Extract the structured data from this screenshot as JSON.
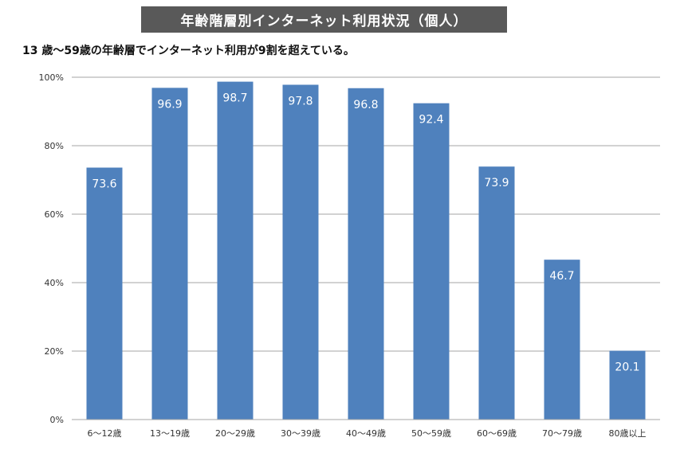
{
  "header": {
    "title": "年齢階層別インターネット利用状況（個人）",
    "subtitle": "13 歳～59歳の年齢層でインターネット利用が9割を超えている。"
  },
  "chart_data": {
    "type": "bar",
    "categories": [
      "6～12歳",
      "13～19歳",
      "20～29歳",
      "30～39歳",
      "40～49歳",
      "50～59歳",
      "60～69歳",
      "70～79歳",
      "80歳以上"
    ],
    "values": [
      73.6,
      96.9,
      98.7,
      97.8,
      96.8,
      92.4,
      73.9,
      46.7,
      20.1
    ],
    "data_labels": [
      "73.6",
      "96.9",
      "98.7",
      "97.8",
      "96.8",
      "92.4",
      "73.9",
      "46.7",
      "20.1"
    ],
    "y_ticks": [
      "0%",
      "20%",
      "40%",
      "60%",
      "80%",
      "100%"
    ],
    "ylim": [
      0,
      100
    ],
    "grid": true,
    "legend": "none",
    "bar_color": "#4F81BD",
    "grid_color": "#A6A6A6"
  }
}
